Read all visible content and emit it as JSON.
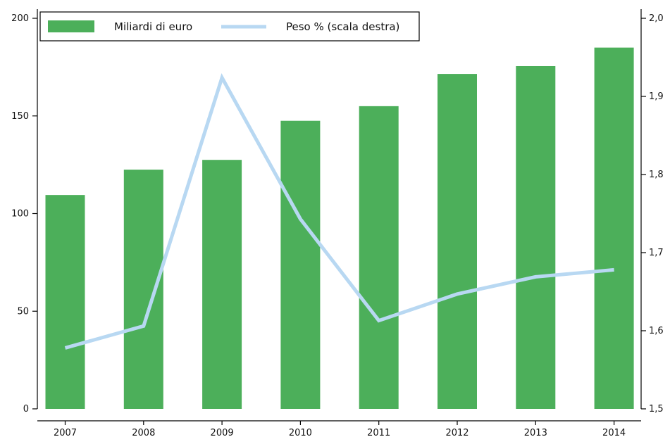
{
  "chart_data": {
    "type": "bar",
    "categories": [
      "2007",
      "2008",
      "2009",
      "2010",
      "2011",
      "2012",
      "2013",
      "2014"
    ],
    "series": [
      {
        "name": "Miliardi di euro",
        "type": "bar",
        "axis": "left",
        "values": [
          109.5,
          122.5,
          127.5,
          147.5,
          155,
          171.5,
          175.5,
          185
        ],
        "color": "#4caf5a"
      },
      {
        "name": "Peso % (scala destra)",
        "type": "line",
        "axis": "right",
        "values": [
          1.578,
          1.606,
          1.924,
          1.743,
          1.613,
          1.647,
          1.669,
          1.678
        ],
        "color": "#b8d8f2"
      }
    ],
    "y_left": {
      "range": [
        0,
        200
      ],
      "ticks": [
        0,
        50,
        100,
        150,
        200
      ],
      "tick_labels": [
        "0",
        "50",
        "100",
        "150",
        "200"
      ]
    },
    "y_right": {
      "range": [
        1.5,
        2.0
      ],
      "ticks": [
        1.5,
        1.6,
        1.7,
        1.8,
        1.9,
        2.0
      ],
      "tick_labels": [
        "1,5",
        "1,6",
        "1,7",
        "1,8",
        "1,9",
        "2,0"
      ]
    },
    "title": "",
    "xlabel": "",
    "ylabel": "",
    "grid": false,
    "legend_position": "top-left"
  }
}
